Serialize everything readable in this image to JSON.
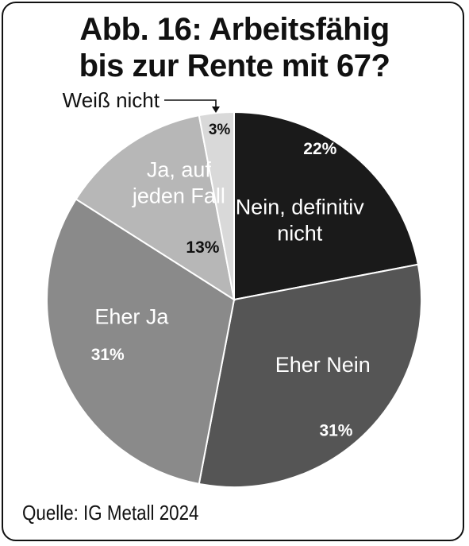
{
  "title_line1": "Abb. 16: Arbeitsfähig",
  "title_line2": "bis zur Rente mit 67?",
  "source": "Quelle: IG Metall 2024",
  "chart_data": {
    "type": "pie",
    "title": "Abb. 16: Arbeitsfähig bis zur Rente mit 67?",
    "slices": [
      {
        "label": "Nein, definitiv nicht",
        "value": 22,
        "value_label": "22%",
        "color": "#1a1a1a"
      },
      {
        "label": "Eher Nein",
        "value": 31,
        "value_label": "31%",
        "color": "#555555"
      },
      {
        "label": "Eher Ja",
        "value": 31,
        "value_label": "31%",
        "color": "#8a8a8a"
      },
      {
        "label": "Ja, auf jeden Fall",
        "value": 13,
        "value_label": "13%",
        "color": "#b7b7b7"
      },
      {
        "label": "Weiß nicht",
        "value": 3,
        "value_label": "3%",
        "color": "#d9d9d9"
      }
    ],
    "start_angle": "12 o'clock",
    "direction": "clockwise"
  }
}
